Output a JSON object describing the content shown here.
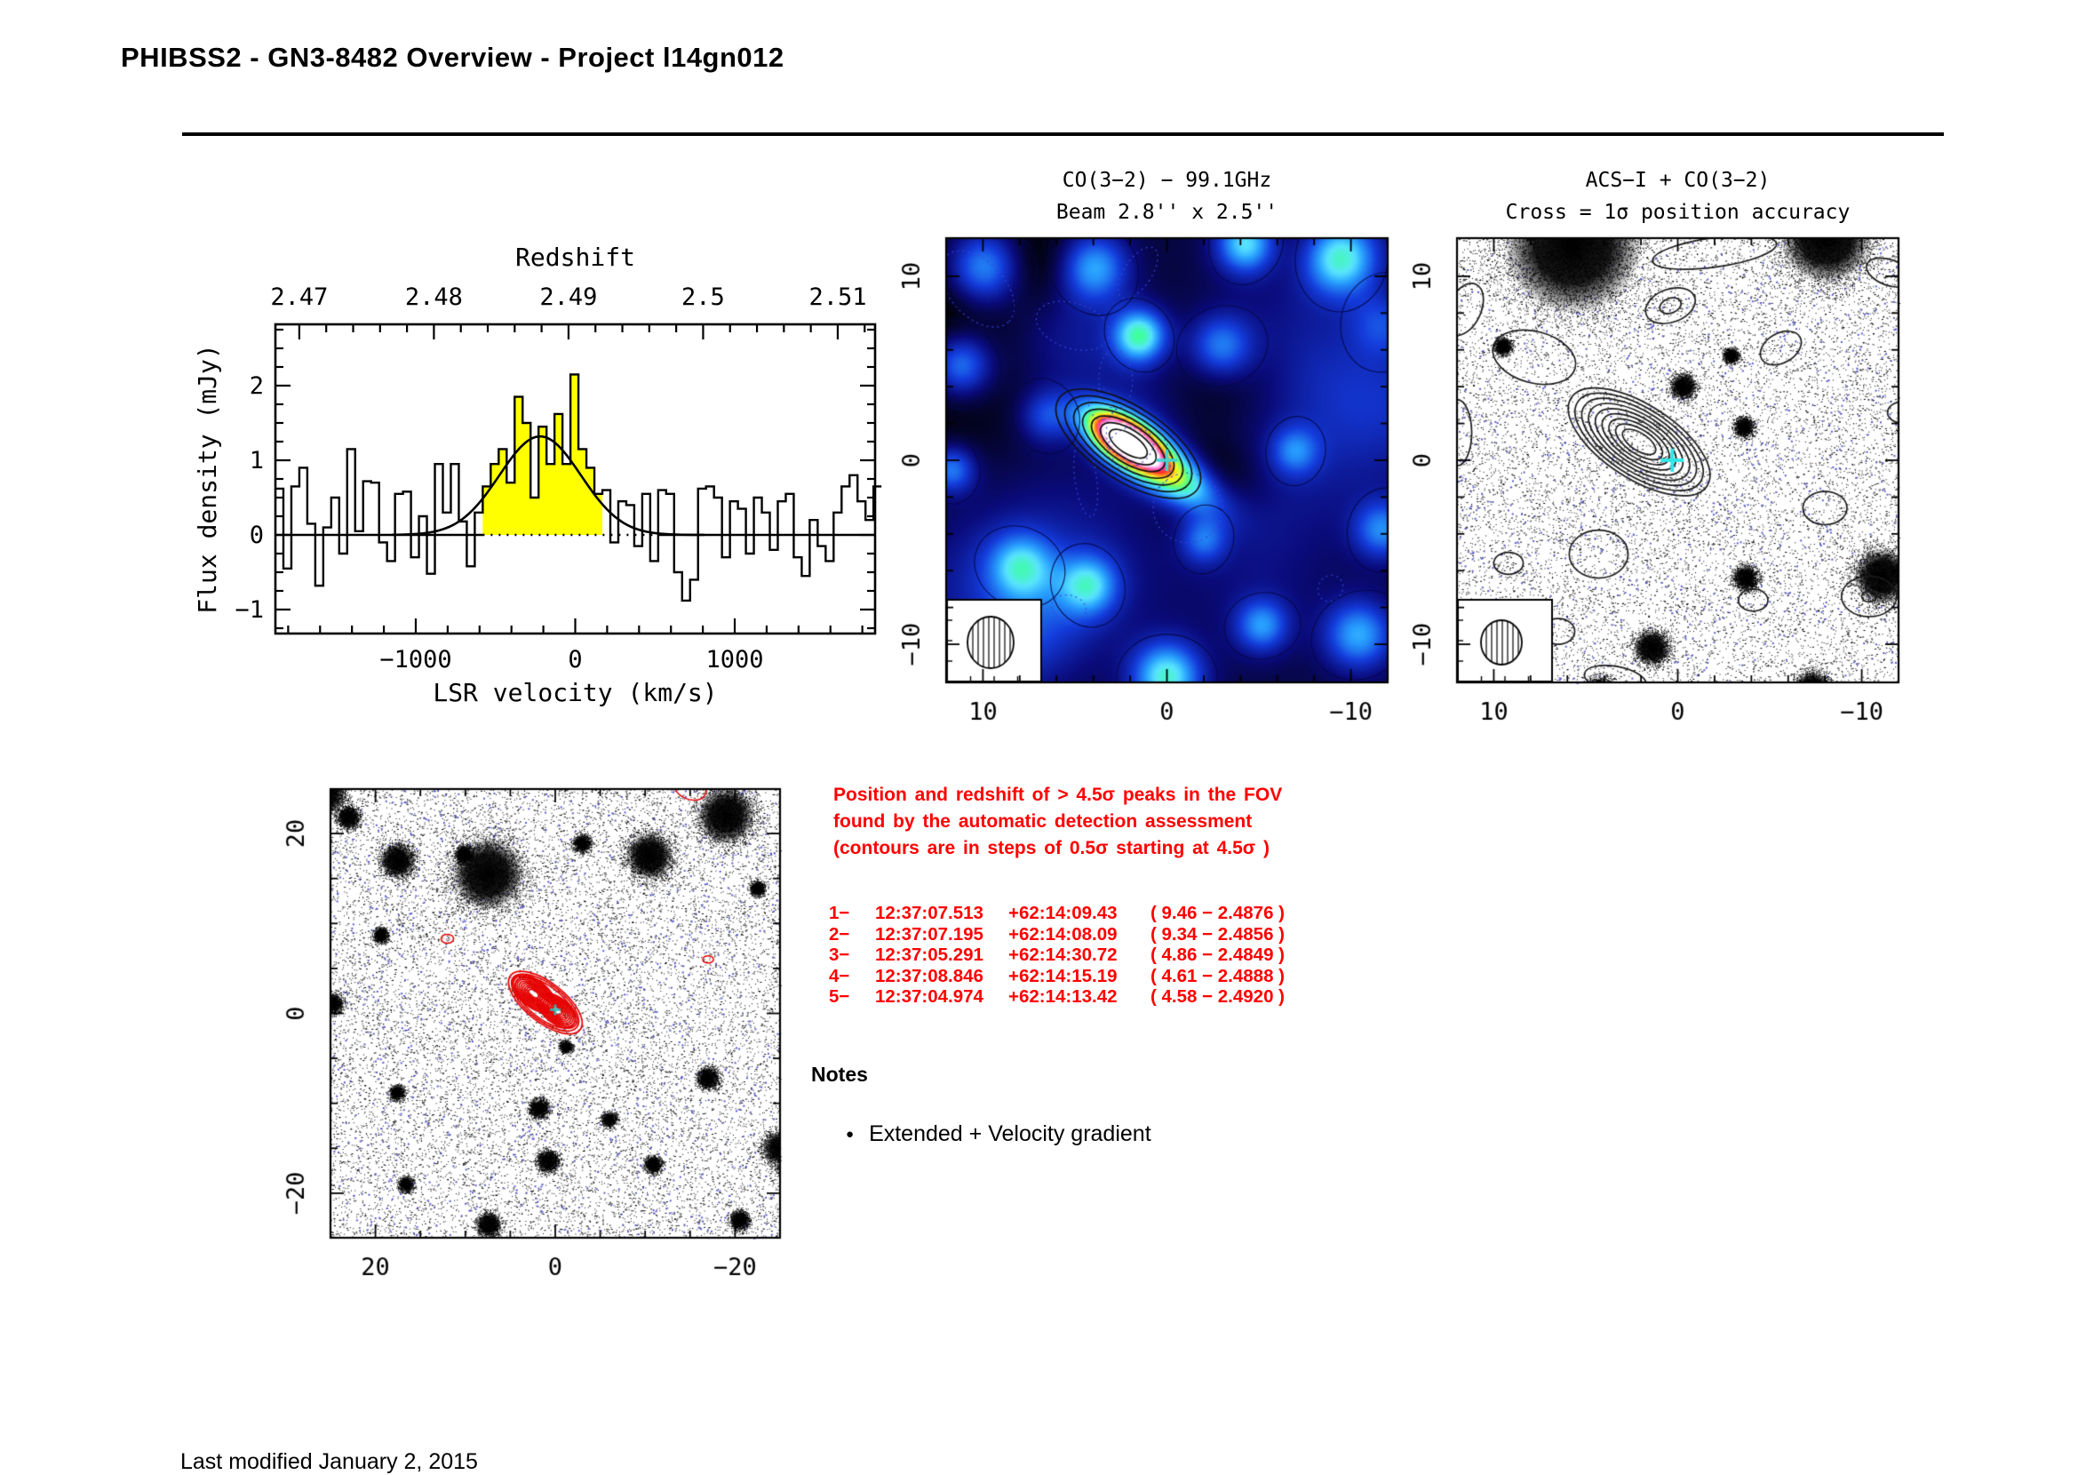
{
  "page": {
    "title": "PHIBSS2 - GN3-8482 Overview - Project l14gn012",
    "footer": "Last modified January 2, 2015"
  },
  "detection": {
    "text_color": "#ff0000",
    "lines": [
      "Position and redshift of > 4.5σ peaks in the FOV",
      "found by the automatic detection assessment",
      "(contours are in steps of 0.5σ starting at 4.5σ )"
    ],
    "peaks": [
      {
        "id": "1−",
        "ra": "12:37:07.513",
        "dec": "+62:14:09.43",
        "snr_z": "( 9.46 − 2.4876 )"
      },
      {
        "id": "2−",
        "ra": "12:37:07.195",
        "dec": "+62:14:08.09",
        "snr_z": "( 9.34 − 2.4856 )"
      },
      {
        "id": "3−",
        "ra": "12:37:05.291",
        "dec": "+62:14:30.72",
        "snr_z": "( 4.86 − 2.4849 )"
      },
      {
        "id": "4−",
        "ra": "12:37:08.846",
        "dec": "+62:14:15.19",
        "snr_z": "( 4.61 − 2.4888 )"
      },
      {
        "id": "5−",
        "ra": "12:37:04.974",
        "dec": "+62:14:13.42",
        "snr_z": "( 4.58 − 2.4920 )"
      }
    ]
  },
  "notes": {
    "heading": "Notes",
    "items": [
      "Extended + Velocity gradient"
    ]
  },
  "chart_data": [
    {
      "type": "histogram",
      "name": "co32-spectrum",
      "xlabel": "LSR velocity (km/s)",
      "ylabel": "Flux density (mJy)",
      "top_axis": {
        "title": "Redshift",
        "ticks": [
          2.47,
          2.48,
          2.49,
          2.5,
          2.51
        ],
        "z_ref": 2.4905,
        "kms_per_z": 84400
      },
      "xlim": [
        -1880,
        1880
      ],
      "ylim": [
        -1.32,
        2.82
      ],
      "x_ticks": [
        -1000,
        0,
        1000
      ],
      "y_ticks": [
        -1,
        0,
        1,
        2
      ],
      "bin_start": -1880,
      "bin_width": 50,
      "values": [
        0.62,
        -0.45,
        0.65,
        0.9,
        0.15,
        -0.68,
        0.1,
        0.5,
        -0.25,
        1.15,
        0.05,
        0.72,
        0.7,
        -0.1,
        -0.35,
        0.55,
        0.58,
        -0.3,
        0.25,
        -0.52,
        0.95,
        0.3,
        0.95,
        0.18,
        -0.42,
        0.3,
        0.65,
        0.95,
        1.15,
        0.7,
        1.85,
        1.5,
        0.5,
        1.45,
        0.95,
        1.62,
        0.95,
        2.15,
        1.15,
        0.9,
        0.55,
        0.6,
        -0.1,
        0.45,
        0.4,
        -0.15,
        0.55,
        -0.35,
        0.6,
        0.55,
        -0.5,
        -0.88,
        -0.6,
        0.62,
        0.65,
        0.5,
        -0.3,
        0.45,
        0.35,
        -0.25,
        0.5,
        0.3,
        -0.2,
        0.45,
        0.55,
        -0.3,
        -0.55,
        0.2,
        -0.15,
        -0.35,
        0.3,
        0.65,
        0.8,
        0.45,
        0.2,
        0.65
      ],
      "gauss_fit": {
        "center": -220,
        "sigma": 255,
        "amplitude": 1.32
      },
      "fill_range": [
        -580,
        170
      ],
      "fill_color": "#ffff00"
    },
    {
      "type": "heatmap",
      "name": "co-moment-map",
      "title": "CO(3−2) − 99.1GHz",
      "subtitle": "Beam 2.8'' x 2.5''",
      "extent_arcsec": 12,
      "x_ticks": [
        10,
        0,
        -10
      ],
      "y_ticks": [
        10,
        0,
        -10
      ],
      "minor_tick": 2,
      "cross": {
        "x": 0,
        "y": 0,
        "color": "#3fd6d6"
      },
      "source_blobs": [
        {
          "x": 2.4,
          "y": 1.2,
          "amp": 1.02,
          "sx": 1.6,
          "sy": 0.8,
          "rot": 33
        },
        {
          "x": -0.2,
          "y": -0.7,
          "amp": 0.55,
          "sx": 2.3,
          "sy": 0.95,
          "rot": 33
        }
      ],
      "background_blobs": [
        {
          "x": -9.5,
          "y": 11,
          "amp": 0.4,
          "s": 1.4
        },
        {
          "x": 4,
          "y": 10.5,
          "amp": 0.3,
          "s": 1.3
        },
        {
          "x": 10,
          "y": 10.5,
          "amp": 0.32,
          "s": 1.4
        },
        {
          "x": 1.5,
          "y": 6.8,
          "amp": 0.42,
          "s": 1.0
        },
        {
          "x": 11.3,
          "y": 5.2,
          "amp": 0.3,
          "s": 1.2
        },
        {
          "x": -3,
          "y": 6.2,
          "amp": 0.26,
          "s": 1.2
        },
        {
          "x": -11.8,
          "y": 7.5,
          "amp": 0.22,
          "s": 1.3
        },
        {
          "x": 11.8,
          "y": -0.5,
          "amp": 0.26,
          "s": 0.9
        },
        {
          "x": 8,
          "y": -5.8,
          "amp": 0.28,
          "s": 1.2
        },
        {
          "x": 4.3,
          "y": -6.8,
          "amp": 0.3,
          "s": 1.1
        },
        {
          "x": -2,
          "y": -4.3,
          "amp": 0.22,
          "s": 0.9
        },
        {
          "x": -5.2,
          "y": -9,
          "amp": 0.26,
          "s": 1.0
        },
        {
          "x": -10.5,
          "y": -9.5,
          "amp": 0.3,
          "s": 1.3
        },
        {
          "x": 0,
          "y": -11.8,
          "amp": 0.4,
          "s": 1.3
        },
        {
          "x": -11.8,
          "y": -3.8,
          "amp": 0.25,
          "s": 1.1
        },
        {
          "x": 6.6,
          "y": 2.4,
          "amp": 0.18,
          "s": 1.0
        },
        {
          "x": -7,
          "y": 0.5,
          "amp": 0.2,
          "s": 0.9
        },
        {
          "x": -4.3,
          "y": 11.8,
          "amp": 0.36,
          "s": 1.1
        }
      ],
      "contours": {
        "x": 2.1,
        "y": 0.9,
        "rx": 4.5,
        "ry": 2.0,
        "rot": 33,
        "levels": 7
      },
      "beam": {
        "rx": 26,
        "ry": 29
      }
    },
    {
      "type": "contour-map",
      "name": "acs-overlay-map",
      "title": "ACS−I + CO(3−2)",
      "subtitle": "Cross = 1σ position accuracy",
      "extent_arcsec": 12,
      "x_ticks": [
        10,
        0,
        -10
      ],
      "y_ticks": [
        10,
        0,
        -10
      ],
      "minor_tick": 2,
      "cross": {
        "x": 0.3,
        "y": 0,
        "color": "#2fe8e8"
      },
      "contour_color": "#1a1a1a",
      "galaxies": [
        {
          "x": 5.7,
          "y": 11.7,
          "r": 2.7
        },
        {
          "x": -8.1,
          "y": 12.1,
          "r": 1.8
        },
        {
          "x": -0.3,
          "y": 4.0,
          "r": 0.5
        },
        {
          "x": -3.6,
          "y": 1.8,
          "r": 0.4
        },
        {
          "x": -2.9,
          "y": 5.7,
          "r": 0.3
        },
        {
          "x": -3.7,
          "y": -6.4,
          "r": 0.5
        },
        {
          "x": 1.4,
          "y": -10.2,
          "r": 0.7
        },
        {
          "x": -11.1,
          "y": -6.3,
          "r": 1.1
        },
        {
          "x": -7.3,
          "y": -12.4,
          "r": 0.7
        },
        {
          "x": -12.5,
          "y": -5.9,
          "r": 0.5
        },
        {
          "x": 4.2,
          "y": -12.6,
          "r": 0.6
        },
        {
          "x": 9.5,
          "y": 6.2,
          "r": 0.35
        }
      ],
      "contours": {
        "x": 2.1,
        "y": 1.0,
        "rx": 4.4,
        "ry": 2.0,
        "rot": 33,
        "levels": 9
      },
      "noise_contours": [
        {
          "x": 0.4,
          "y": 8.4,
          "rx": 1.4,
          "ry": 0.9,
          "rot": -20
        },
        {
          "x": 0.4,
          "y": 8.4,
          "rx": 0.6,
          "ry": 0.4,
          "rot": -20
        },
        {
          "x": 7.8,
          "y": 5.6,
          "rx": 2.3,
          "ry": 1.4,
          "rot": 15
        },
        {
          "x": -5.6,
          "y": 6.1,
          "rx": 1.2,
          "ry": 0.8,
          "rot": -30
        },
        {
          "x": 11.6,
          "y": 8.2,
          "rx": 0.9,
          "ry": 1.5,
          "rot": 25
        },
        {
          "x": -2,
          "y": 11.3,
          "rx": 3.4,
          "ry": 0.8,
          "rot": -8
        },
        {
          "x": -11.5,
          "y": 10.2,
          "rx": 1.3,
          "ry": 0.7,
          "rot": 20
        },
        {
          "x": -12.3,
          "y": 2.6,
          "rx": 0.9,
          "ry": 0.6,
          "rot": 0
        },
        {
          "x": -8,
          "y": -2.6,
          "rx": 1.2,
          "ry": 0.9,
          "rot": 0
        },
        {
          "x": 4.3,
          "y": -5.1,
          "rx": 1.6,
          "ry": 1.3,
          "rot": 0
        },
        {
          "x": 9.2,
          "y": -5.6,
          "rx": 0.8,
          "ry": 0.6,
          "rot": 0
        },
        {
          "x": -4.1,
          "y": -7.6,
          "rx": 0.8,
          "ry": 0.6,
          "rot": 0
        },
        {
          "x": -10.4,
          "y": -7.4,
          "rx": 1.5,
          "ry": 1.1,
          "rot": 0
        },
        {
          "x": -10.4,
          "y": -7.4,
          "rx": 0.4,
          "ry": 0.3,
          "rot": 0
        },
        {
          "x": 3.4,
          "y": -11.9,
          "rx": 1.7,
          "ry": 0.7,
          "rot": 10
        },
        {
          "x": 12,
          "y": 1.5,
          "rx": 0.8,
          "ry": 1.8,
          "rot": 0
        },
        {
          "x": 6.5,
          "y": -9.3,
          "rx": 0.9,
          "ry": 0.7,
          "rot": 0
        }
      ],
      "beam": {
        "rx": 23,
        "ry": 25
      }
    },
    {
      "type": "contour-map",
      "name": "fov-detection-map",
      "extent_arcsec": 25,
      "x_ticks": [
        20,
        0,
        -20
      ],
      "y_ticks": [
        20,
        0,
        -20
      ],
      "minor_tick": 5,
      "cross": {
        "x": 0,
        "y": 0.4,
        "color": "#2fbfbf"
      },
      "contour_color": "#e60000",
      "galaxies": [
        {
          "x": 7.5,
          "y": 15.5,
          "r": 2.9
        },
        {
          "x": 17.5,
          "y": 17,
          "r": 1.4
        },
        {
          "x": -10.5,
          "y": 17.5,
          "r": 1.9
        },
        {
          "x": -19,
          "y": 22,
          "r": 2.3
        },
        {
          "x": 25.5,
          "y": 24.5,
          "r": 1.7
        },
        {
          "x": 10.2,
          "y": 17.7,
          "r": 0.7
        },
        {
          "x": -3,
          "y": 18.9,
          "r": 0.7
        },
        {
          "x": -22.5,
          "y": 13.9,
          "r": 0.6
        },
        {
          "x": 24.7,
          "y": 1.1,
          "r": 0.8
        },
        {
          "x": 19.4,
          "y": 8.7,
          "r": 0.6
        },
        {
          "x": -17,
          "y": -7.2,
          "r": 0.9
        },
        {
          "x": -1.2,
          "y": -3.7,
          "r": 0.5
        },
        {
          "x": 1.8,
          "y": -10.6,
          "r": 0.8
        },
        {
          "x": -6,
          "y": -11.8,
          "r": 0.6
        },
        {
          "x": 17.6,
          "y": -8.8,
          "r": 0.6
        },
        {
          "x": 0.8,
          "y": -16.4,
          "r": 0.9
        },
        {
          "x": -10.9,
          "y": -16.8,
          "r": 0.7
        },
        {
          "x": 16.6,
          "y": -19,
          "r": 0.6
        },
        {
          "x": 7.4,
          "y": -23.5,
          "r": 1.0
        },
        {
          "x": -25,
          "y": -15,
          "r": 1.4
        },
        {
          "x": -26,
          "y": -17.5,
          "r": 0.9
        },
        {
          "x": -20.5,
          "y": -23,
          "r": 0.8
        },
        {
          "x": 23,
          "y": 21.8,
          "r": 0.9
        }
      ],
      "contour_groups": [
        {
          "x": 2.4,
          "y": 2.2,
          "rx": 2.9,
          "ry": 1.5,
          "rot": 38,
          "levels": 10,
          "inner": 0.14
        },
        {
          "x": -0.2,
          "y": 0.3,
          "rx": 2.6,
          "ry": 1.4,
          "rot": 38,
          "levels": 9,
          "inner": 0.14
        },
        {
          "x": 1.1,
          "y": 1.2,
          "rx": 4.9,
          "ry": 2.2,
          "rot": 38,
          "levels": 3,
          "inner": 0.72
        }
      ],
      "extra_contours": [
        {
          "x": -15,
          "y": 25,
          "rx": 0.9,
          "ry": 0.6,
          "rot": 20
        },
        {
          "x": 12,
          "y": 8.3,
          "rx": 0.35,
          "ry": 0.25,
          "rot": 0
        },
        {
          "x": -17,
          "y": 6,
          "rx": 0.3,
          "ry": 0.2,
          "rot": 0
        }
      ]
    }
  ]
}
